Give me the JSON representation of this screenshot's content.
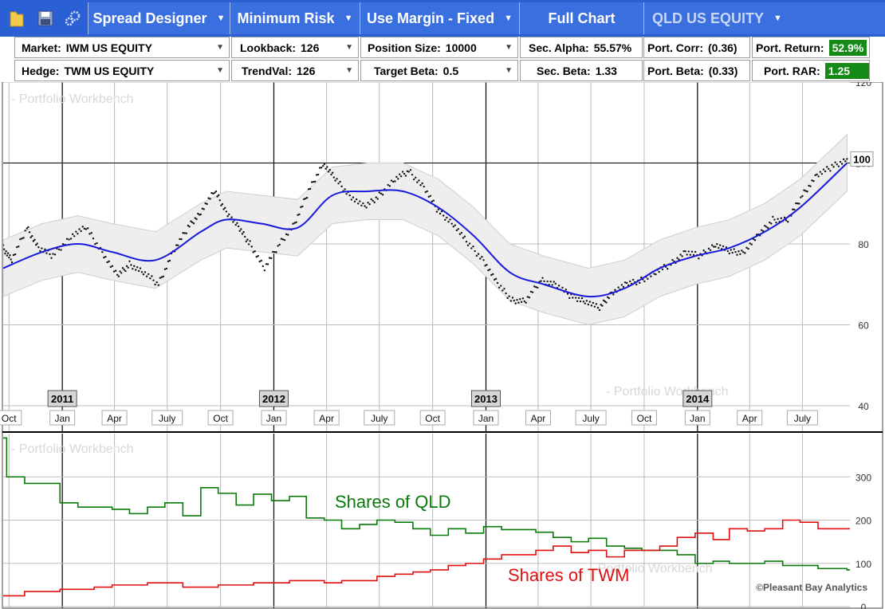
{
  "toolbar": {
    "icons": [
      "folder-icon",
      "save-icon",
      "settings-gears-icon"
    ],
    "spread_designer": "Spread Designer",
    "minimum_risk": "Minimum Risk",
    "use_margin": "Use Margin - Fixed",
    "full_chart": "Full Chart",
    "security": "QLD US EQUITY"
  },
  "fields": {
    "market_label": "Market:",
    "market_value": "IWM US EQUITY",
    "hedge_label": "Hedge:",
    "hedge_value": "TWM US EQUITY",
    "lookback_label": "Lookback:",
    "lookback_value": "126",
    "trendval_label": "TrendVal:",
    "trendval_value": "126",
    "position_size_label": "Position Size:",
    "position_size_value": "10000",
    "target_beta_label": "Target Beta:",
    "target_beta_value": "0.5",
    "sec_alpha_label": "Sec. Alpha:",
    "sec_alpha_value": "55.57%",
    "sec_beta_label": "Sec. Beta:",
    "sec_beta_value": "1.33",
    "port_corr_label": "Port. Corr:",
    "port_corr_value": "(0.36)",
    "port_beta_label": "Port. Beta:",
    "port_beta_value": "(0.33)",
    "port_return_label": "Port. Return:",
    "port_return_value": "52.9%",
    "port_rar_label": "Port. RAR:",
    "port_rar_value": "1.25"
  },
  "colors": {
    "toolbar": "#2a5fd6",
    "trend": "#1a1adc",
    "qld": "#0a7a0a",
    "twm": "#e01010",
    "positive": "#168a16"
  },
  "watermark": "Portfolio Workbench",
  "copyright": "©Pleasant Bay Analytics",
  "chart_data": [
    {
      "type": "scatter",
      "title": "",
      "xlabel": "",
      "ylabel": "",
      "ylim": [
        40,
        120
      ],
      "yticks": [
        40,
        60,
        80,
        100,
        120
      ],
      "x_range": [
        "2010-09-25",
        "2014-09-25"
      ],
      "year_markers": [
        "2011",
        "2012",
        "2013",
        "2014"
      ],
      "month_ticks": [
        "Oct",
        "Jan",
        "Apr",
        "July",
        "Oct",
        "Jan",
        "Apr",
        "July",
        "Oct",
        "Jan",
        "Apr",
        "July",
        "Oct",
        "Jan",
        "Apr",
        "July"
      ],
      "last_value_label": "100",
      "series": [
        {
          "style": "dots",
          "points": [
            [
              "2010-09-25",
              79
            ],
            [
              "2010-10-10",
              76
            ],
            [
              "2010-11-05",
              84
            ],
            [
              "2010-11-25",
              79
            ],
            [
              "2010-12-20",
              77
            ],
            [
              "2011-01-20",
              82
            ],
            [
              "2011-02-15",
              84
            ],
            [
              "2011-03-15",
              78
            ],
            [
              "2011-04-10",
              72
            ],
            [
              "2011-05-01",
              75
            ],
            [
              "2011-05-25",
              73
            ],
            [
              "2011-06-20",
              70
            ],
            [
              "2011-07-15",
              78
            ],
            [
              "2011-08-10",
              84
            ],
            [
              "2011-09-01",
              88
            ],
            [
              "2011-09-25",
              93
            ],
            [
              "2011-10-15",
              88
            ],
            [
              "2011-11-05",
              84
            ],
            [
              "2011-11-25",
              80
            ],
            [
              "2011-12-20",
              74
            ],
            [
              "2012-01-15",
              80
            ],
            [
              "2012-02-10",
              85
            ],
            [
              "2012-03-05",
              93
            ],
            [
              "2012-03-30",
              100
            ],
            [
              "2012-04-20",
              96
            ],
            [
              "2012-05-15",
              92
            ],
            [
              "2012-06-10",
              89
            ],
            [
              "2012-07-05",
              92
            ],
            [
              "2012-08-01",
              96
            ],
            [
              "2012-08-25",
              98
            ],
            [
              "2012-09-20",
              94
            ],
            [
              "2012-10-15",
              88
            ],
            [
              "2012-11-10",
              85
            ],
            [
              "2012-12-05",
              80
            ],
            [
              "2013-01-01",
              76
            ],
            [
              "2013-01-25",
              70
            ],
            [
              "2013-02-20",
              66
            ],
            [
              "2013-03-15",
              66
            ],
            [
              "2013-04-10",
              71
            ],
            [
              "2013-05-05",
              70
            ],
            [
              "2013-06-01",
              67
            ],
            [
              "2013-06-25",
              66
            ],
            [
              "2013-07-20",
              64
            ],
            [
              "2013-08-10",
              68
            ],
            [
              "2013-09-05",
              70
            ],
            [
              "2013-09-30",
              71
            ],
            [
              "2013-10-25",
              73
            ],
            [
              "2013-11-20",
              75
            ],
            [
              "2013-12-15",
              78
            ],
            [
              "2014-01-10",
              77
            ],
            [
              "2014-02-05",
              80
            ],
            [
              "2014-03-01",
              78
            ],
            [
              "2014-03-25",
              78
            ],
            [
              "2014-04-20",
              82
            ],
            [
              "2014-05-15",
              86
            ],
            [
              "2014-06-10",
              86
            ],
            [
              "2014-07-05",
              92
            ],
            [
              "2014-07-30",
              97
            ],
            [
              "2014-08-25",
              99
            ],
            [
              "2014-09-20",
              101
            ]
          ]
        },
        {
          "style": "trend-line",
          "points": [
            [
              "2010-09-25",
              74
            ],
            [
              "2010-12-01",
              78
            ],
            [
              "2011-02-01",
              80
            ],
            [
              "2011-04-01",
              78
            ],
            [
              "2011-06-15",
              76
            ],
            [
              "2011-09-01",
              83
            ],
            [
              "2011-10-15",
              86
            ],
            [
              "2011-12-15",
              85
            ],
            [
              "2012-02-15",
              84
            ],
            [
              "2012-04-15",
              92
            ],
            [
              "2012-06-15",
              93
            ],
            [
              "2012-08-15",
              93
            ],
            [
              "2012-10-15",
              89
            ],
            [
              "2012-12-15",
              82
            ],
            [
              "2013-02-15",
              73
            ],
            [
              "2013-04-15",
              70
            ],
            [
              "2013-07-01",
              67
            ],
            [
              "2013-09-01",
              69
            ],
            [
              "2013-11-01",
              74
            ],
            [
              "2014-01-01",
              77
            ],
            [
              "2014-03-01",
              79
            ],
            [
              "2014-05-01",
              83
            ],
            [
              "2014-07-01",
              89
            ],
            [
              "2014-09-20",
              100
            ]
          ]
        }
      ]
    },
    {
      "type": "line",
      "ylim": [
        0,
        400
      ],
      "yticks": [
        0,
        100,
        200,
        300
      ],
      "x_range": [
        "2010-09-25",
        "2014-09-25"
      ],
      "series": [
        {
          "name": "Shares of QLD",
          "points": [
            [
              "2010-09-25",
              390
            ],
            [
              "2010-10-01",
              300
            ],
            [
              "2010-11-01",
              285
            ],
            [
              "2011-01-01",
              240
            ],
            [
              "2011-02-01",
              230
            ],
            [
              "2011-04-01",
              225
            ],
            [
              "2011-05-01",
              215
            ],
            [
              "2011-06-01",
              230
            ],
            [
              "2011-07-01",
              240
            ],
            [
              "2011-08-01",
              210
            ],
            [
              "2011-09-01",
              275
            ],
            [
              "2011-10-01",
              262
            ],
            [
              "2011-11-01",
              235
            ],
            [
              "2011-12-01",
              260
            ],
            [
              "2012-01-01",
              245
            ],
            [
              "2012-02-01",
              255
            ],
            [
              "2012-03-01",
              205
            ],
            [
              "2012-04-01",
              200
            ],
            [
              "2012-05-01",
              180
            ],
            [
              "2012-06-01",
              190
            ],
            [
              "2012-07-01",
              200
            ],
            [
              "2012-08-01",
              195
            ],
            [
              "2012-09-01",
              180
            ],
            [
              "2012-10-01",
              165
            ],
            [
              "2012-11-01",
              180
            ],
            [
              "2012-12-01",
              170
            ],
            [
              "2013-01-01",
              185
            ],
            [
              "2013-02-01",
              178
            ],
            [
              "2013-04-01",
              172
            ],
            [
              "2013-05-01",
              160
            ],
            [
              "2013-06-01",
              150
            ],
            [
              "2013-07-01",
              158
            ],
            [
              "2013-08-01",
              140
            ],
            [
              "2013-09-01",
              135
            ],
            [
              "2013-10-01",
              130
            ],
            [
              "2013-12-01",
              120
            ],
            [
              "2014-01-01",
              100
            ],
            [
              "2014-02-01",
              105
            ],
            [
              "2014-03-01",
              100
            ],
            [
              "2014-05-01",
              105
            ],
            [
              "2014-06-01",
              95
            ],
            [
              "2014-08-01",
              88
            ],
            [
              "2014-09-20",
              85
            ]
          ]
        },
        {
          "name": "Shares of TWM",
          "points": [
            [
              "2010-09-25",
              25
            ],
            [
              "2010-11-01",
              35
            ],
            [
              "2011-01-01",
              40
            ],
            [
              "2011-03-01",
              45
            ],
            [
              "2011-04-01",
              50
            ],
            [
              "2011-06-01",
              55
            ],
            [
              "2011-08-01",
              45
            ],
            [
              "2011-10-01",
              50
            ],
            [
              "2011-12-01",
              55
            ],
            [
              "2012-02-01",
              60
            ],
            [
              "2012-04-01",
              55
            ],
            [
              "2012-05-01",
              60
            ],
            [
              "2012-07-01",
              70
            ],
            [
              "2012-08-01",
              75
            ],
            [
              "2012-09-01",
              80
            ],
            [
              "2012-10-01",
              85
            ],
            [
              "2012-11-01",
              95
            ],
            [
              "2012-12-01",
              100
            ],
            [
              "2013-01-01",
              110
            ],
            [
              "2013-02-01",
              120
            ],
            [
              "2013-04-01",
              130
            ],
            [
              "2013-05-01",
              140
            ],
            [
              "2013-06-01",
              125
            ],
            [
              "2013-07-01",
              130
            ],
            [
              "2013-08-01",
              115
            ],
            [
              "2013-09-01",
              130
            ],
            [
              "2013-11-01",
              140
            ],
            [
              "2013-12-01",
              160
            ],
            [
              "2014-01-01",
              170
            ],
            [
              "2014-02-01",
              155
            ],
            [
              "2014-03-01",
              180
            ],
            [
              "2014-04-01",
              175
            ],
            [
              "2014-05-01",
              180
            ],
            [
              "2014-06-01",
              200
            ],
            [
              "2014-07-01",
              195
            ],
            [
              "2014-08-01",
              180
            ],
            [
              "2014-09-20",
              180
            ]
          ]
        }
      ]
    }
  ]
}
